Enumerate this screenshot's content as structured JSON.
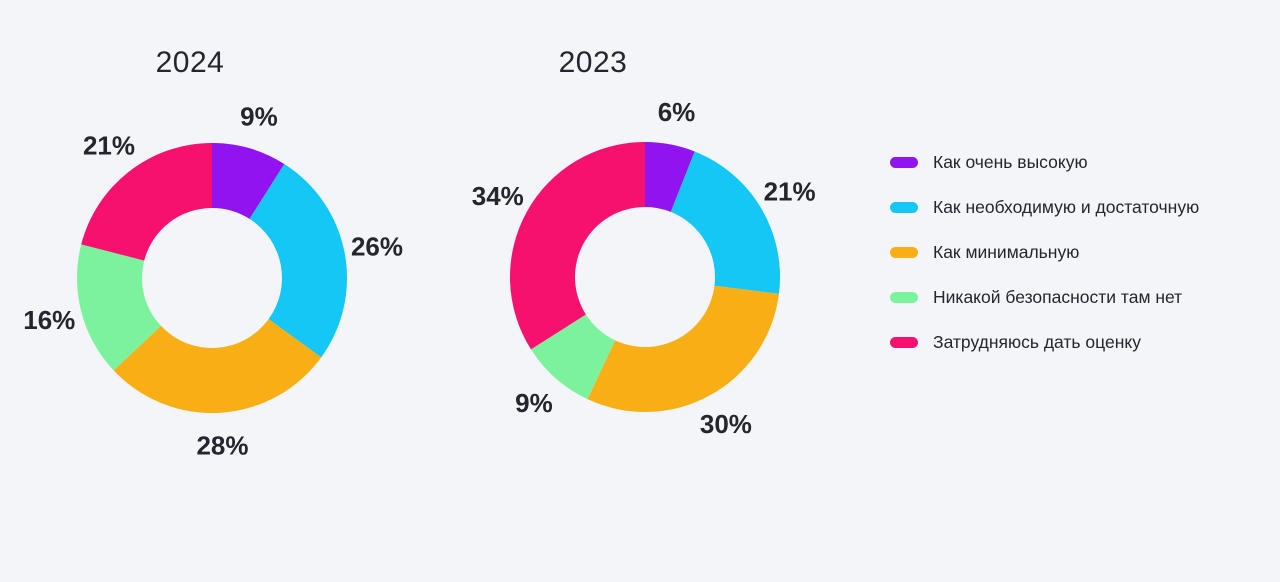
{
  "page": {
    "background_color": "#F4F5F9",
    "text_color": "#24262F"
  },
  "chart_data": [
    {
      "type": "pie",
      "subtype": "donut",
      "title": "2024",
      "categories": [
        "Как очень высокую",
        "Как необходимую и достаточную",
        "Как минимальную",
        "Никакой безопасности там нет",
        "Затрудняюсь дать оценку"
      ],
      "values": [
        9,
        26,
        28,
        16,
        21
      ],
      "labels": [
        "9%",
        "26%",
        "28%",
        "16%",
        "21%"
      ],
      "colors": [
        "#9013F0",
        "#14C7F5",
        "#F8AE15",
        "#7DF29D",
        "#F6116E"
      ],
      "start_angle_deg": 0,
      "direction": "clockwise",
      "inner_radius_ratio": 0.52,
      "legend_position": "right"
    },
    {
      "type": "pie",
      "subtype": "donut",
      "title": "2023",
      "categories": [
        "Как очень высокую",
        "Как необходимую и достаточную",
        "Как минимальную",
        "Никакой безопасности там нет",
        "Затрудняюсь дать оценку"
      ],
      "values": [
        6,
        21,
        30,
        9,
        34
      ],
      "labels": [
        "6%",
        "21%",
        "30%",
        "9%",
        "34%"
      ],
      "colors": [
        "#9013F0",
        "#14C7F5",
        "#F8AE15",
        "#7DF29D",
        "#F6116E"
      ],
      "start_angle_deg": 0,
      "direction": "clockwise",
      "inner_radius_ratio": 0.52,
      "legend_position": "right"
    }
  ]
}
